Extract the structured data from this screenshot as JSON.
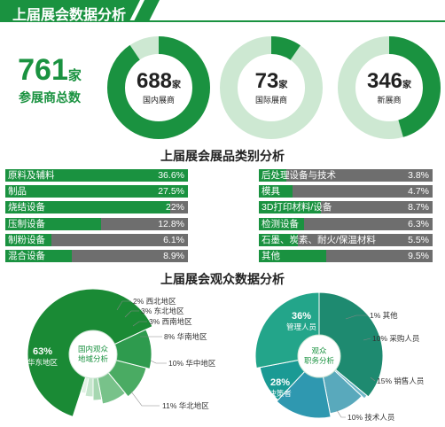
{
  "header": {
    "title": "上届展会数据分析",
    "color": "#1a9240"
  },
  "summary": {
    "total_value": "761",
    "total_unit": "家",
    "total_label": "参展商总数"
  },
  "donuts": [
    {
      "value": "688",
      "unit": "家",
      "label": "国内展商",
      "fraction": 0.904
    },
    {
      "value": "73",
      "unit": "家",
      "label": "国际展商",
      "fraction": 0.096
    },
    {
      "value": "346",
      "unit": "家",
      "label": "新展商",
      "fraction": 0.455
    }
  ],
  "categories_title": "上届展会展品类别分析",
  "audience_title": "上届展会观众数据分析",
  "chart_data": [
    {
      "type": "bar",
      "categories": [
        "原料及辅料",
        "制品",
        "烧结设备",
        "压制设备",
        "制粉设备",
        "混合设备"
      ],
      "values": [
        36.6,
        27.5,
        22,
        12.8,
        6.1,
        8.9
      ],
      "value_labels": [
        "36.6%",
        "27.5%",
        "22%",
        "12.8%",
        "6.1%",
        "8.9%"
      ],
      "xlim": [
        0,
        100
      ]
    },
    {
      "type": "bar",
      "categories": [
        "后处理设备与技术",
        "模具",
        "3D打印材料/设备",
        "检测设备",
        "石墨、炭素、耐火/保温材料",
        "其他"
      ],
      "values": [
        3.8,
        4.7,
        8.7,
        6.3,
        5.5,
        9.5
      ],
      "value_labels": [
        "3.8%",
        "4.7%",
        "8.7%",
        "6.3%",
        "5.5%",
        "9.5%"
      ],
      "xlim": [
        0,
        100
      ]
    },
    {
      "type": "pie",
      "center_label": [
        "国内观众",
        "地域分析"
      ],
      "slices": [
        {
          "name": "华东地区",
          "value": 63,
          "label": "63%",
          "color": "#1a8a35"
        },
        {
          "name": "华北地区",
          "value": 11,
          "label": "11% 华北地区",
          "color": "#2e9b4e"
        },
        {
          "name": "华中地区",
          "value": 10,
          "label": "10% 华中地区",
          "color": "#4aab63"
        },
        {
          "name": "华南地区",
          "value": 8,
          "label": "8% 华南地区",
          "color": "#78c28a"
        },
        {
          "name": "西南地区",
          "value": 3,
          "label": "3% 西南地区",
          "color": "#a6d7b1"
        },
        {
          "name": "东北地区",
          "value": 3,
          "label": "3% 东北地区",
          "color": "#c7e6ce"
        },
        {
          "name": "西北地区",
          "value": 2,
          "label": "2% 西北地区",
          "color": "#e3f2e6"
        }
      ]
    },
    {
      "type": "pie",
      "center_label": [
        "观众",
        "职务分析"
      ],
      "slices": [
        {
          "name": "管理人员",
          "value": 36,
          "label": "36%",
          "color": "#1e8a70"
        },
        {
          "name": "其他",
          "value": 1,
          "label": "1% 其他",
          "color": "#6fb8c8"
        },
        {
          "name": "采购人员",
          "value": 10,
          "label": "10% 采购人员",
          "color": "#59a9bc"
        },
        {
          "name": "销售人员",
          "value": 15,
          "label": "15% 销售人员",
          "color": "#2f98b0"
        },
        {
          "name": "技术人员",
          "value": 10,
          "label": "10% 技术人员",
          "color": "#1a9a94"
        },
        {
          "name": "决策者",
          "value": 28,
          "label": "28%",
          "color": "#23a58a"
        }
      ]
    }
  ]
}
